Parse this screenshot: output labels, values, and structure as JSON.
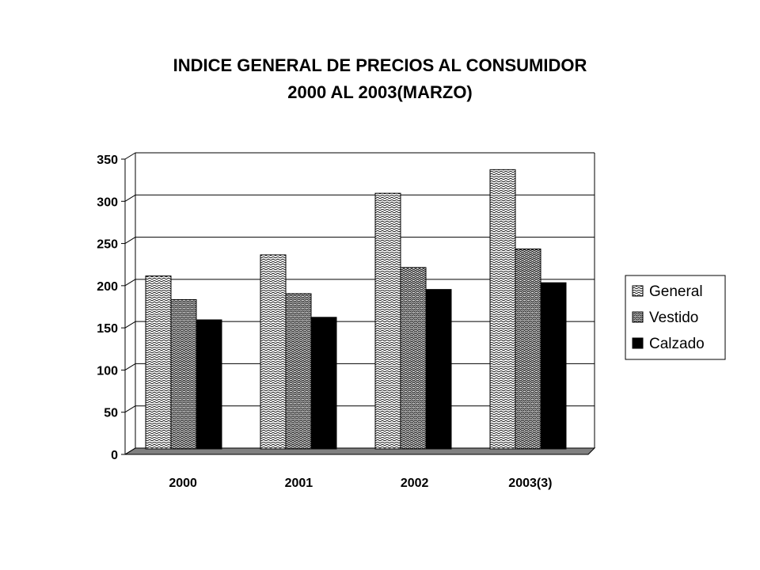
{
  "chart_data": {
    "type": "bar",
    "title": "INDICE GENERAL DE PRECIOS AL CONSUMIDOR",
    "subtitle": "2000 AL 2003(MARZO)",
    "categories": [
      "2000",
      "2001",
      "2002",
      "2003(3)"
    ],
    "series": [
      {
        "name": "General",
        "values": [
          204,
          229,
          302,
          330
        ],
        "pattern": "zigzag-light"
      },
      {
        "name": "Vestido",
        "values": [
          176,
          183,
          214,
          236
        ],
        "pattern": "zigzag-dense"
      },
      {
        "name": "Calzado",
        "values": [
          152,
          155,
          188,
          196
        ],
        "color": "#000000"
      }
    ],
    "ylim": [
      0,
      350
    ],
    "yticks": [
      "0",
      "50",
      "100",
      "150",
      "200",
      "250",
      "300",
      "350"
    ],
    "grid": true,
    "legend": "right",
    "style": "3d-floor"
  }
}
